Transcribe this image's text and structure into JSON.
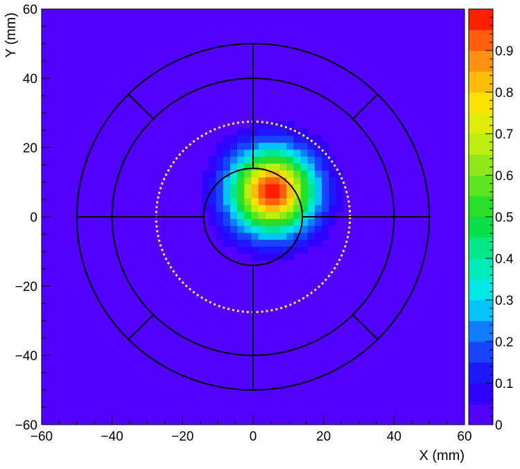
{
  "chart_data": {
    "type": "heatmap",
    "xlabel": "X (mm)",
    "ylabel": "Y (mm)",
    "xlim": [
      -60,
      60
    ],
    "ylim": [
      -60,
      60
    ],
    "x_ticks": [
      "−60",
      "−40",
      "−20",
      "0",
      "20",
      "40",
      "60"
    ],
    "y_ticks": [
      "60",
      "40",
      "20",
      "0",
      "−20",
      "−40",
      "−60"
    ],
    "x_tick_values": [
      -60,
      -40,
      -20,
      0,
      20,
      40,
      60
    ],
    "y_tick_values": [
      60,
      40,
      20,
      0,
      -20,
      -40,
      -60
    ],
    "colorbar": {
      "range": [
        0,
        1
      ],
      "tick_values": [
        0,
        0.1,
        0.2,
        0.3,
        0.4,
        0.5,
        0.6,
        0.7,
        0.8,
        0.9
      ],
      "tick_labels": [
        "0",
        "0.1",
        "0.2",
        "0.3",
        "0.4",
        "0.5",
        "0.6",
        "0.7",
        "0.8",
        "0.9"
      ],
      "levels": 20
    },
    "background_value": 0,
    "spot": {
      "center_x": 5.5,
      "center_y": 7.5,
      "peak_value": 1.0,
      "sigma_mm": 8.2,
      "extent_radius_mm": 22,
      "bin_size_mm": 2
    },
    "overlay": {
      "outer_circle_radius": 50,
      "middle_circle_radius": 40,
      "inner_circle_radius": 14,
      "dotted_circle_radius": 27.5,
      "dotted_circle_color": "#ffe94a",
      "line_color": "#000000"
    }
  }
}
